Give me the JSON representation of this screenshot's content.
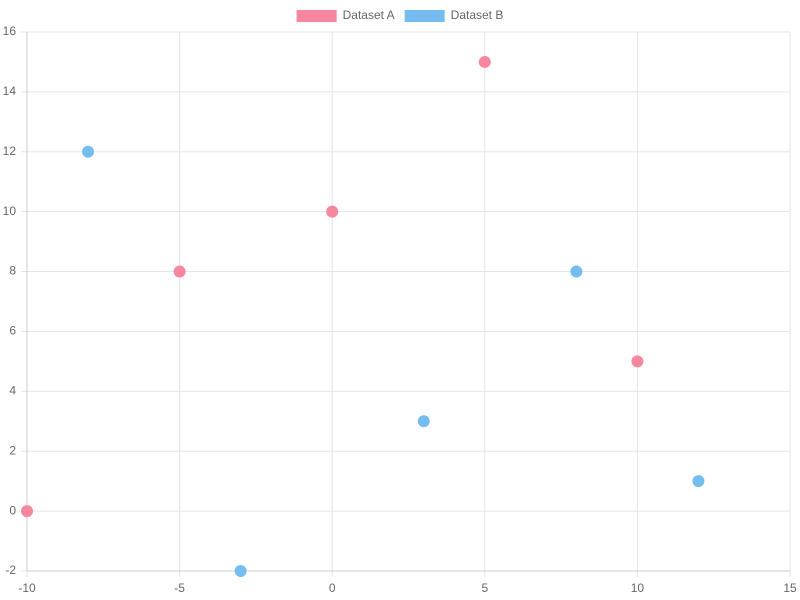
{
  "chart_data": {
    "type": "scatter",
    "series": [
      {
        "name": "Dataset A",
        "color": "#f7879e",
        "x": [
          -10,
          -5,
          0,
          5,
          10
        ],
        "values": [
          0,
          8,
          10,
          15,
          5
        ]
      },
      {
        "name": "Dataset B",
        "color": "#74bdee",
        "x": [
          -8,
          -3,
          3,
          8,
          12
        ],
        "values": [
          12,
          -2,
          3,
          8,
          1
        ]
      }
    ],
    "xlim": [
      -10,
      15
    ],
    "xticks": [
      -10,
      -5,
      0,
      5,
      10,
      15
    ],
    "ylim": [
      -2,
      16
    ],
    "yticks": [
      -2,
      0,
      2,
      4,
      6,
      8,
      10,
      12,
      14,
      16
    ],
    "grid": true,
    "legend": "top"
  }
}
